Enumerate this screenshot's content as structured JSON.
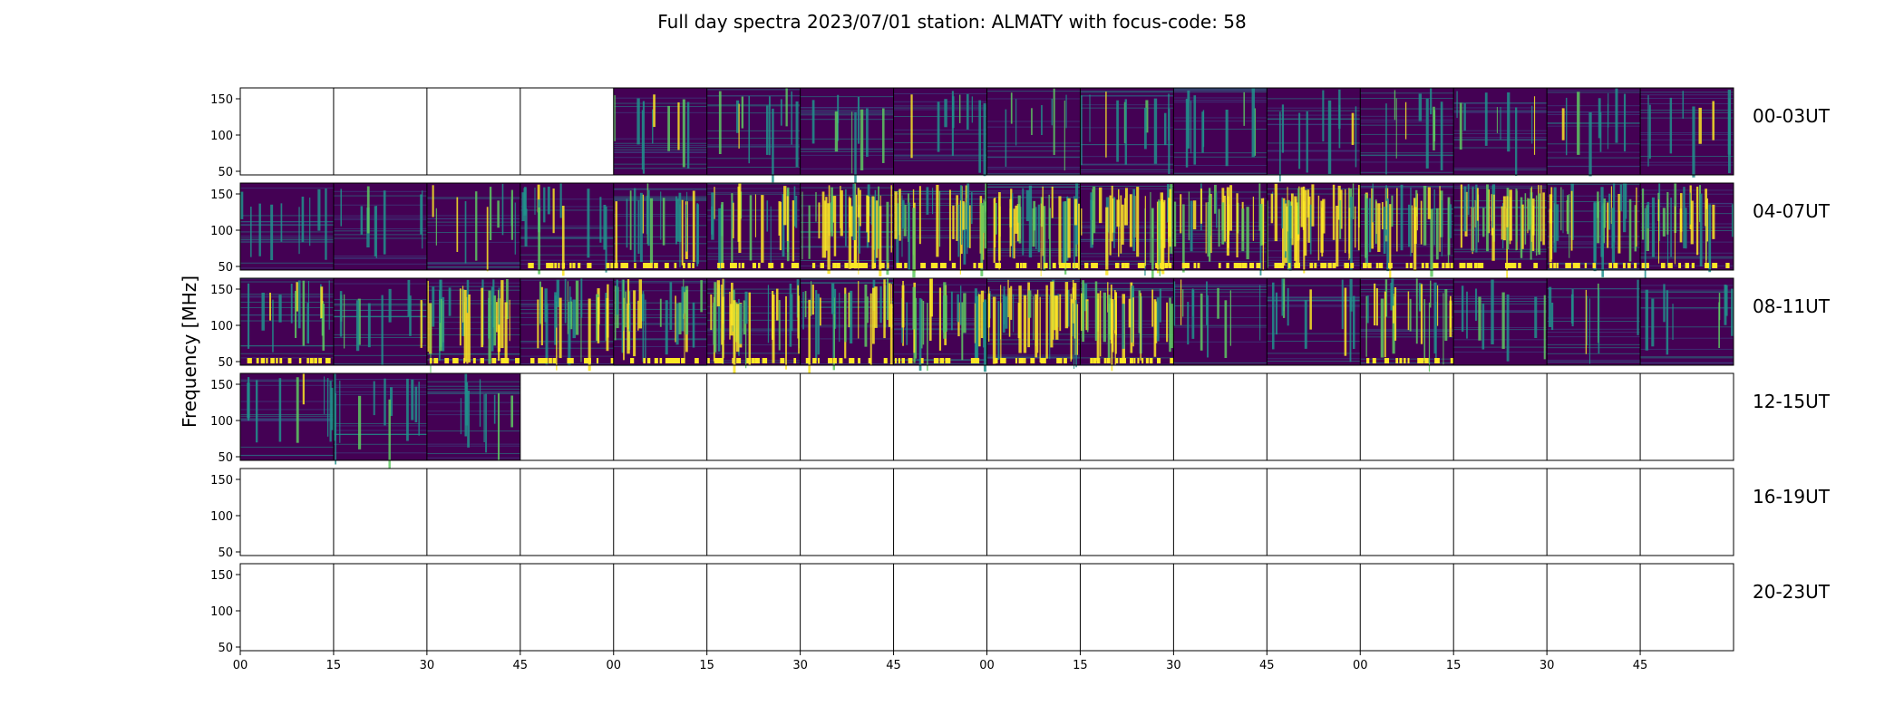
{
  "chart_data": {
    "type": "heatmap",
    "title": "Full day spectra 2023/07/01 station: ALMATY with focus-code: 58",
    "ylabel": "Frequency [MHz]",
    "y_ticks": [
      50,
      100,
      150
    ],
    "ylim": [
      45,
      165
    ],
    "x_tick_labels": [
      "00",
      "15",
      "30",
      "45",
      "00",
      "15",
      "30",
      "45",
      "00",
      "15",
      "30",
      "45",
      "00",
      "15",
      "30",
      "45"
    ],
    "colormap": [
      "#440154",
      "#3b528b",
      "#21918c",
      "#5ec962",
      "#fde725"
    ],
    "rows": [
      {
        "label": "00-03UT",
        "panels_with_data": [
          4,
          5,
          6,
          7,
          8,
          9,
          10,
          11,
          12,
          13,
          14,
          15
        ],
        "bright": [
          0,
          0,
          0,
          0,
          0.05,
          0.08,
          0.06,
          0.05,
          0.04,
          0.08,
          0.05,
          0.05,
          0.06,
          0.06,
          0.05,
          0.06
        ]
      },
      {
        "label": "04-07UT",
        "panels_with_data": [
          0,
          1,
          2,
          3,
          4,
          5,
          6,
          7,
          8,
          9,
          10,
          11,
          12,
          13,
          14,
          15
        ],
        "bright": [
          0.05,
          0.04,
          0.08,
          0.15,
          0.25,
          0.3,
          0.5,
          0.45,
          0.5,
          0.55,
          0.4,
          0.6,
          0.45,
          0.55,
          0.4,
          0.35
        ]
      },
      {
        "label": "08-11UT",
        "panels_with_data": [
          0,
          1,
          2,
          3,
          4,
          5,
          6,
          7,
          8,
          9,
          10,
          11,
          12,
          13,
          14,
          15
        ],
        "bright": [
          0.15,
          0.08,
          0.4,
          0.3,
          0.35,
          0.45,
          0.35,
          0.4,
          0.55,
          0.5,
          0.1,
          0.1,
          0.3,
          0.05,
          0.06,
          0.06
        ]
      },
      {
        "label": "12-15UT",
        "panels_with_data": [
          0,
          1,
          2
        ],
        "bright": [
          0.05,
          0.08,
          0.06,
          0,
          0,
          0,
          0,
          0,
          0,
          0,
          0,
          0,
          0,
          0,
          0,
          0
        ]
      },
      {
        "label": "16-19UT",
        "panels_with_data": [],
        "bright": []
      },
      {
        "label": "20-23UT",
        "panels_with_data": [],
        "bright": []
      }
    ]
  }
}
